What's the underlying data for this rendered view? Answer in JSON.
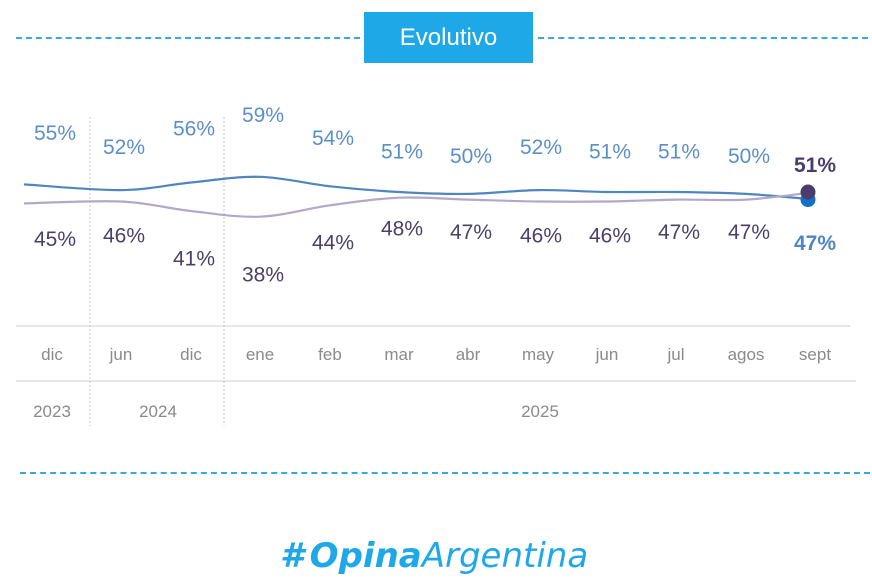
{
  "header": {
    "title": "Evolutivo"
  },
  "chart_data": {
    "type": "line",
    "categories": [
      "dic",
      "jun",
      "dic",
      "ene",
      "feb",
      "mar",
      "abr",
      "may",
      "jun",
      "jul",
      "agos",
      "sept"
    ],
    "year_groups": [
      {
        "label": "2023",
        "span": [
          0,
          0
        ]
      },
      {
        "label": "2024",
        "span": [
          1,
          2
        ]
      },
      {
        "label": "2025",
        "span": [
          3,
          11
        ]
      }
    ],
    "series": [
      {
        "values": [
          55,
          52,
          56,
          59,
          54,
          51,
          50,
          52,
          51,
          51,
          50,
          47
        ],
        "labels": [
          "55%",
          "52%",
          "56%",
          "59%",
          "54%",
          "51%",
          "50%",
          "52%",
          "51%",
          "51%",
          "50%",
          "47%"
        ],
        "color": "#4f86c0",
        "label_color": "#5b8fc9",
        "end_marker_color": "#1670c5"
      },
      {
        "values": [
          45,
          46,
          41,
          38,
          44,
          48,
          47,
          46,
          46,
          47,
          47,
          51
        ],
        "labels": [
          "45%",
          "46%",
          "41%",
          "38%",
          "44%",
          "48%",
          "47%",
          "46%",
          "46%",
          "47%",
          "47%",
          "51%"
        ],
        "color": "#b3a8c9",
        "label_color": "#4a4069",
        "end_marker_color": "#4a3c6e"
      }
    ],
    "grid": false,
    "legend": "none"
  },
  "brand": {
    "logo_word1": "Opina",
    "logo_word2": "Argentina",
    "logo_symbol": "#"
  }
}
